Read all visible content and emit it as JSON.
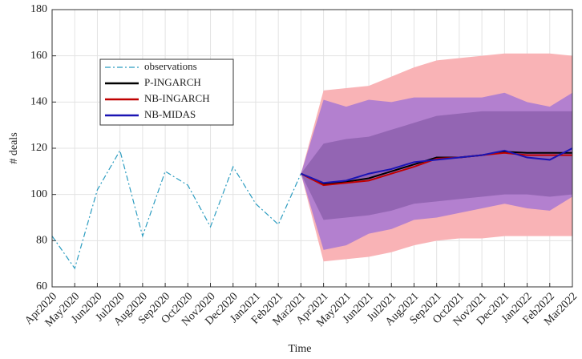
{
  "chart_data": {
    "type": "line",
    "x_label": "Time",
    "y_label": "# deals",
    "categories": [
      "Apr2020",
      "May2020",
      "Jun2020",
      "Jul2020",
      "Aug2020",
      "Sep2020",
      "Oct2020",
      "Nov2020",
      "Dec2020",
      "Jan2021",
      "Feb2021",
      "Mar2021",
      "Apr2021",
      "May2021",
      "Jun2021",
      "Jul2021",
      "Aug2021",
      "Sep2021",
      "Oct2021",
      "Nov2021",
      "Dec2021",
      "Jan2022",
      "Feb2022",
      "Mar2022"
    ],
    "ylim": [
      60,
      180
    ],
    "yticks": [
      60,
      80,
      100,
      120,
      140,
      160,
      180
    ],
    "grid": true,
    "legend": "upper left",
    "bands": [
      {
        "color": "#f9b3b6",
        "upper": [
          null,
          null,
          null,
          null,
          null,
          null,
          null,
          null,
          null,
          null,
          null,
          109,
          145,
          146,
          147,
          151,
          155,
          158,
          159,
          160,
          161,
          161,
          161,
          160
        ],
        "lower": [
          null,
          null,
          null,
          null,
          null,
          null,
          null,
          null,
          null,
          null,
          null,
          109,
          71,
          72,
          73,
          75,
          78,
          80,
          81,
          81,
          82,
          82,
          82,
          82
        ]
      },
      {
        "color": "#b380cf",
        "upper": [
          null,
          null,
          null,
          null,
          null,
          null,
          null,
          null,
          null,
          null,
          null,
          109,
          141,
          138,
          141,
          140,
          142,
          142,
          142,
          142,
          144,
          140,
          138,
          144
        ],
        "lower": [
          null,
          null,
          null,
          null,
          null,
          null,
          null,
          null,
          null,
          null,
          null,
          109,
          76,
          78,
          83,
          85,
          89,
          90,
          92,
          94,
          96,
          94,
          93,
          99
        ]
      },
      {
        "color": "#9365b3",
        "upper": [
          null,
          null,
          null,
          null,
          null,
          null,
          null,
          null,
          null,
          null,
          null,
          109,
          122,
          124,
          125,
          128,
          131,
          134,
          135,
          136,
          136,
          136,
          136,
          136
        ],
        "lower": [
          null,
          null,
          null,
          null,
          null,
          null,
          null,
          null,
          null,
          null,
          null,
          109,
          89,
          90,
          91,
          93,
          96,
          97,
          98,
          99,
          100,
          100,
          99,
          100
        ]
      }
    ],
    "series": [
      {
        "name": "observations",
        "color": "#2b9cc0",
        "linestyle": "dashdot",
        "values": [
          82,
          68,
          102,
          119,
          82,
          110,
          104,
          86,
          112,
          96,
          87,
          109,
          null,
          null,
          null,
          null,
          null,
          null,
          null,
          null,
          null,
          null,
          null,
          null
        ]
      },
      {
        "name": "P-INGARCH",
        "color": "#000000",
        "linestyle": "solid",
        "values": [
          null,
          null,
          null,
          null,
          null,
          null,
          null,
          null,
          null,
          null,
          null,
          109,
          104.5,
          105.5,
          107,
          110,
          113,
          116,
          116,
          117,
          118.5,
          118,
          118,
          118
        ]
      },
      {
        "name": "NB-INGARCH",
        "color": "#c00000",
        "linestyle": "solid",
        "values": [
          null,
          null,
          null,
          null,
          null,
          null,
          null,
          null,
          null,
          null,
          null,
          109,
          104,
          105,
          106,
          109,
          112,
          115.5,
          116,
          117,
          118,
          117,
          117,
          117
        ]
      },
      {
        "name": "NB-MIDAS",
        "color": "#1a14b4",
        "linestyle": "solid",
        "values": [
          null,
          null,
          null,
          null,
          null,
          null,
          null,
          null,
          null,
          null,
          null,
          109,
          105,
          106,
          109,
          111,
          114,
          115,
          116,
          117,
          119,
          116,
          115,
          120
        ]
      }
    ]
  }
}
